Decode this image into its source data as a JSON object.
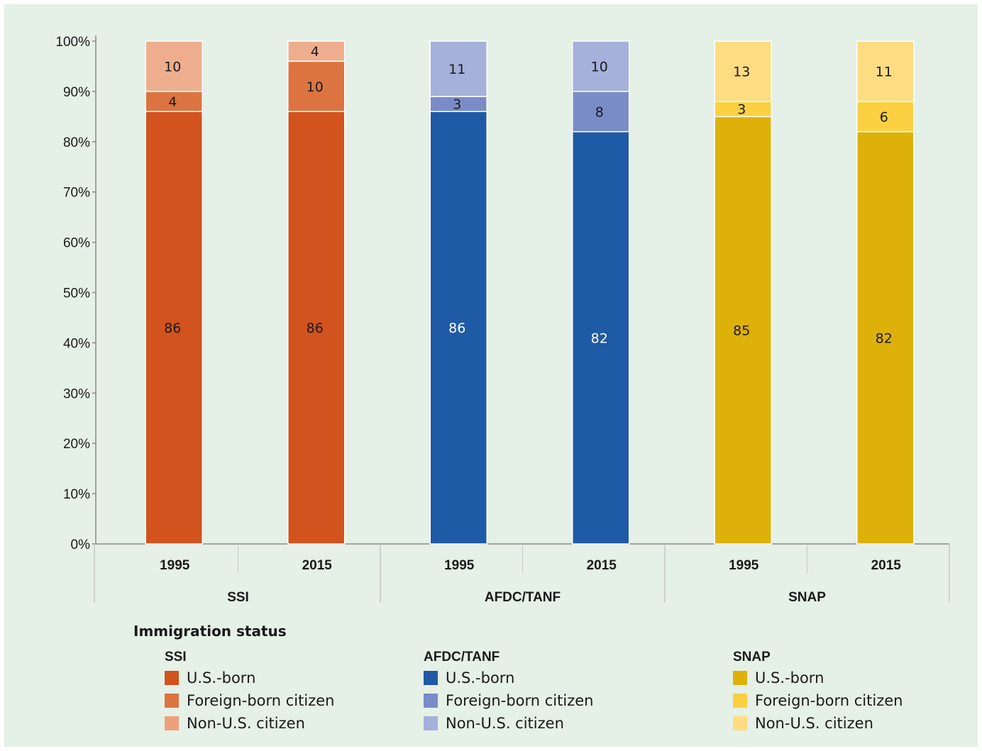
{
  "chart_data": {
    "type": "bar",
    "stacked": true,
    "ylim": [
      0,
      100
    ],
    "yticks": [
      "0%",
      "10%",
      "20%",
      "30%",
      "40%",
      "50%",
      "60%",
      "70%",
      "80%",
      "90%",
      "100%"
    ],
    "grid": false,
    "groups": [
      {
        "name": "SSI",
        "colors": [
          "#d2531e",
          "#dc7441",
          "#eeae8e"
        ],
        "bars": [
          {
            "label": "1995",
            "values": [
              86,
              4,
              10
            ]
          },
          {
            "label": "2015",
            "values": [
              86,
              10,
              4
            ]
          }
        ]
      },
      {
        "name": "AFDC/TANF",
        "colors": [
          "#1f5aa6",
          "#7a8cc7",
          "#a5b0db"
        ],
        "bars": [
          {
            "label": "1995",
            "values": [
              86,
              3,
              11
            ]
          },
          {
            "label": "2015",
            "values": [
              82,
              8,
              10
            ]
          }
        ]
      },
      {
        "name": "SNAP",
        "colors": [
          "#deb00a",
          "#fbd042",
          "#fedc81"
        ],
        "bars": [
          {
            "label": "1995",
            "values": [
              85,
              3,
              13
            ]
          },
          {
            "label": "2015",
            "values": [
              82,
              6,
              11
            ]
          }
        ]
      }
    ],
    "series_names": [
      "U.S.-born",
      "Foreign-born citizen",
      "Non-U.S. citizen"
    ],
    "legend": {
      "title": "Immigration status",
      "placement": "bottom"
    },
    "label_colors": [
      "#1a1a1a",
      "#ffffff",
      "#1a1a1a"
    ]
  }
}
